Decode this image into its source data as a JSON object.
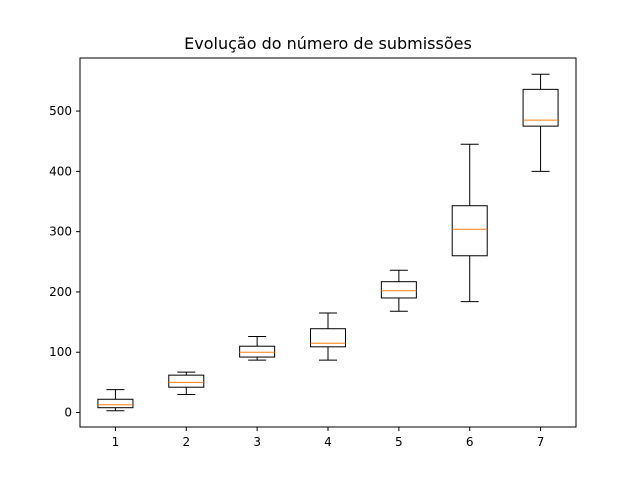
{
  "chart_data": {
    "type": "boxplot",
    "title": "Evolução do número de submissões",
    "xlabel": "",
    "ylabel": "",
    "categories": [
      "1",
      "2",
      "3",
      "4",
      "5",
      "6",
      "7"
    ],
    "boxes": [
      {
        "label": "1",
        "whisker_low": 3,
        "q1": 8,
        "median": 13,
        "q3": 22,
        "whisker_high": 38
      },
      {
        "label": "2",
        "whisker_low": 30,
        "q1": 42,
        "median": 50,
        "q3": 62,
        "whisker_high": 67
      },
      {
        "label": "3",
        "whisker_low": 87,
        "q1": 92,
        "median": 100,
        "q3": 110,
        "whisker_high": 126
      },
      {
        "label": "4",
        "whisker_low": 87,
        "q1": 109,
        "median": 115,
        "q3": 139,
        "whisker_high": 165
      },
      {
        "label": "5",
        "whisker_low": 168,
        "q1": 190,
        "median": 202,
        "q3": 217,
        "whisker_high": 236
      },
      {
        "label": "6",
        "whisker_low": 184,
        "q1": 260,
        "median": 304,
        "q3": 343,
        "whisker_high": 445
      },
      {
        "label": "7",
        "whisker_low": 400,
        "q1": 475,
        "median": 485,
        "q3": 536,
        "whisker_high": 561
      }
    ],
    "yticks": [
      0,
      100,
      200,
      300,
      400,
      500
    ],
    "ylim": [
      -24,
      588
    ],
    "xlim": [
      0.5,
      7.5
    ],
    "grid": false,
    "colors": {
      "box": "#000000",
      "median": "#ff7f0e",
      "axes": "#000000"
    }
  }
}
